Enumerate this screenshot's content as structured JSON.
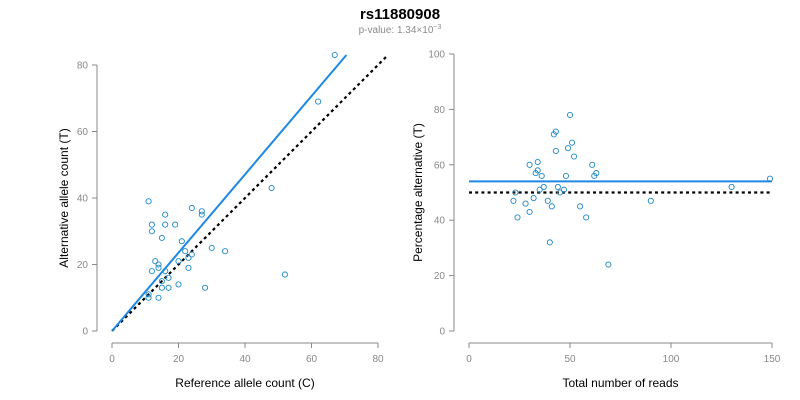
{
  "title": "rs11880908",
  "subtitle": {
    "prefix": "p-value: 1.34×10",
    "exponent": "−3"
  },
  "colors": {
    "points": "#1e88c8",
    "fit_line": "#1e88e5",
    "reference_line": "#000000",
    "axis": "#8a8a8a"
  },
  "chart_data": [
    {
      "type": "scatter",
      "xlabel": "Reference allele count (C)",
      "ylabel": "Alternative allele count (T)",
      "xlim": [
        0,
        80
      ],
      "ylim": [
        0,
        80
      ],
      "xticks": [
        0,
        20,
        40,
        60,
        80
      ],
      "yticks": [
        0,
        20,
        40,
        60,
        80
      ],
      "grid": false,
      "points": [
        {
          "x": 11,
          "y": 39
        },
        {
          "x": 12,
          "y": 32
        },
        {
          "x": 12,
          "y": 30
        },
        {
          "x": 16,
          "y": 35
        },
        {
          "x": 16,
          "y": 32
        },
        {
          "x": 15,
          "y": 28
        },
        {
          "x": 19,
          "y": 32
        },
        {
          "x": 24,
          "y": 37
        },
        {
          "x": 27,
          "y": 36
        },
        {
          "x": 27,
          "y": 35
        },
        {
          "x": 48,
          "y": 43
        },
        {
          "x": 62,
          "y": 69
        },
        {
          "x": 67,
          "y": 83
        },
        {
          "x": 21,
          "y": 27
        },
        {
          "x": 22,
          "y": 24
        },
        {
          "x": 23,
          "y": 22
        },
        {
          "x": 24,
          "y": 23
        },
        {
          "x": 30,
          "y": 25
        },
        {
          "x": 34,
          "y": 24
        },
        {
          "x": 20,
          "y": 21
        },
        {
          "x": 23,
          "y": 19
        },
        {
          "x": 13,
          "y": 21
        },
        {
          "x": 14,
          "y": 20
        },
        {
          "x": 14,
          "y": 19
        },
        {
          "x": 12,
          "y": 18
        },
        {
          "x": 16,
          "y": 18
        },
        {
          "x": 17,
          "y": 16
        },
        {
          "x": 15,
          "y": 15
        },
        {
          "x": 15,
          "y": 13
        },
        {
          "x": 17,
          "y": 13
        },
        {
          "x": 20,
          "y": 14
        },
        {
          "x": 11,
          "y": 11
        },
        {
          "x": 11,
          "y": 10
        },
        {
          "x": 14,
          "y": 10
        },
        {
          "x": 28,
          "y": 13
        },
        {
          "x": 52,
          "y": 17
        }
      ],
      "fit_line": {
        "x": [
          0,
          70.5
        ],
        "y": [
          0,
          83
        ]
      },
      "reference_line": {
        "x": [
          0,
          83
        ],
        "y": [
          0,
          83
        ]
      }
    },
    {
      "type": "scatter",
      "xlabel": "Total number of reads",
      "ylabel": "Percentage alternative (T)",
      "xlim": [
        0,
        150
      ],
      "ylim": [
        0,
        100
      ],
      "xticks": [
        0,
        50,
        100,
        150
      ],
      "yticks": [
        0,
        20,
        40,
        60,
        80,
        100
      ],
      "grid": false,
      "points": [
        {
          "x": 22,
          "y": 47
        },
        {
          "x": 24,
          "y": 41
        },
        {
          "x": 23,
          "y": 50
        },
        {
          "x": 28,
          "y": 46
        },
        {
          "x": 30,
          "y": 43
        },
        {
          "x": 30,
          "y": 60
        },
        {
          "x": 32,
          "y": 48
        },
        {
          "x": 33,
          "y": 57
        },
        {
          "x": 34,
          "y": 61
        },
        {
          "x": 34,
          "y": 58
        },
        {
          "x": 35,
          "y": 51
        },
        {
          "x": 36,
          "y": 56
        },
        {
          "x": 37,
          "y": 52
        },
        {
          "x": 39,
          "y": 47
        },
        {
          "x": 40,
          "y": 32
        },
        {
          "x": 41,
          "y": 45
        },
        {
          "x": 42,
          "y": 71
        },
        {
          "x": 43,
          "y": 72
        },
        {
          "x": 43,
          "y": 65
        },
        {
          "x": 44,
          "y": 52
        },
        {
          "x": 45,
          "y": 50
        },
        {
          "x": 47,
          "y": 51
        },
        {
          "x": 48,
          "y": 56
        },
        {
          "x": 49,
          "y": 66
        },
        {
          "x": 50,
          "y": 78
        },
        {
          "x": 51,
          "y": 68
        },
        {
          "x": 52,
          "y": 63
        },
        {
          "x": 55,
          "y": 45
        },
        {
          "x": 58,
          "y": 41
        },
        {
          "x": 61,
          "y": 60
        },
        {
          "x": 62,
          "y": 56
        },
        {
          "x": 63,
          "y": 57
        },
        {
          "x": 69,
          "y": 24
        },
        {
          "x": 90,
          "y": 47
        },
        {
          "x": 130,
          "y": 52
        },
        {
          "x": 149,
          "y": 55
        }
      ],
      "fit_line": {
        "x": [
          0,
          150
        ],
        "y": [
          54,
          54
        ]
      },
      "reference_line": {
        "x": [
          0,
          150
        ],
        "y": [
          50,
          50
        ]
      }
    }
  ]
}
